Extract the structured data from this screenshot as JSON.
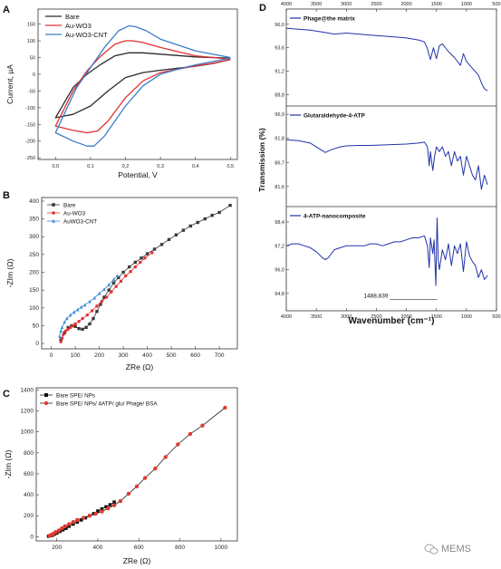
{
  "chart_data": [
    {
      "panel": "A",
      "type": "line",
      "xlabel": "Potential, V",
      "ylabel": "Current, µA",
      "xlim": [
        -0.05,
        0.52
      ],
      "ylim": [
        -255,
        195
      ],
      "xticks": [
        "0,0",
        "0,1",
        "0,2",
        "0,3",
        "0,4",
        "0,5"
      ],
      "yticks": [
        "-250",
        "-200",
        "-150",
        "-100",
        "-50",
        "0",
        "50",
        "100",
        "150"
      ],
      "legend_position": "top-left",
      "series": [
        {
          "name": "Bare",
          "color": "#2b2b2b",
          "x": [
            0.5,
            0.4,
            0.3,
            0.25,
            0.21,
            0.17,
            0.13,
            0.09,
            0.05,
            0.0,
            0.05,
            0.1,
            0.15,
            0.2,
            0.25,
            0.3,
            0.35,
            0.4,
            0.45,
            0.5
          ],
          "y": [
            48,
            52,
            60,
            64,
            64,
            55,
            30,
            0,
            -40,
            -130,
            -120,
            -95,
            -50,
            -10,
            5,
            12,
            18,
            24,
            32,
            44
          ]
        },
        {
          "name": "Au-WO3",
          "color": "#e03030",
          "x": [
            0.5,
            0.4,
            0.3,
            0.25,
            0.22,
            0.2,
            0.17,
            0.13,
            0.09,
            0.05,
            0.0,
            0.05,
            0.09,
            0.12,
            0.15,
            0.2,
            0.25,
            0.3,
            0.35,
            0.4,
            0.45,
            0.5
          ],
          "y": [
            45,
            55,
            80,
            95,
            100,
            100,
            90,
            55,
            10,
            -50,
            -155,
            -168,
            -175,
            -170,
            -140,
            -70,
            -20,
            5,
            15,
            25,
            33,
            44
          ]
        },
        {
          "name": "Au-WO3-CNT",
          "color": "#3a7dc8",
          "x": [
            0.5,
            0.4,
            0.3,
            0.26,
            0.23,
            0.21,
            0.18,
            0.14,
            0.1,
            0.06,
            0.0,
            0.05,
            0.09,
            0.11,
            0.14,
            0.2,
            0.25,
            0.3,
            0.35,
            0.4,
            0.45,
            0.5
          ],
          "y": [
            50,
            70,
            105,
            130,
            142,
            145,
            130,
            80,
            20,
            -40,
            -175,
            -200,
            -215,
            -215,
            -185,
            -95,
            -35,
            0,
            15,
            28,
            38,
            48
          ]
        }
      ]
    },
    {
      "panel": "B",
      "type": "scatter",
      "xlabel": "ZRe (Ω)",
      "ylabel": "-ZIm (Ω)",
      "xlim": [
        -40,
        775
      ],
      "ylim": [
        -15,
        410
      ],
      "xticks": [
        "0",
        "100",
        "200",
        "300",
        "400",
        "500",
        "600",
        "700"
      ],
      "yticks": [
        "0",
        "50",
        "100",
        "150",
        "200",
        "250",
        "300",
        "350",
        "400"
      ],
      "legend_position": "top-left",
      "series": [
        {
          "name": "Bare",
          "color": "#3a3a3a",
          "marker": "square",
          "x": [
            40,
            55,
            70,
            85,
            100,
            115,
            130,
            145,
            160,
            175,
            190,
            205,
            220,
            240,
            260,
            280,
            300,
            325,
            350,
            375,
            400,
            430,
            460,
            490,
            520,
            550,
            580,
            610,
            640,
            670,
            700,
            745
          ],
          "y": [
            10,
            30,
            45,
            50,
            48,
            42,
            40,
            45,
            55,
            70,
            90,
            110,
            130,
            150,
            170,
            185,
            200,
            215,
            228,
            240,
            252,
            265,
            278,
            292,
            305,
            318,
            330,
            340,
            350,
            360,
            368,
            388
          ]
        },
        {
          "name": "Au-WO3",
          "color": "#e03030",
          "marker": "circle",
          "x": [
            40,
            45,
            50,
            60,
            70,
            80,
            90,
            100,
            115,
            130,
            150,
            170,
            190,
            210,
            230,
            250,
            270,
            290,
            310,
            330,
            350,
            370,
            390,
            420
          ],
          "y": [
            5,
            15,
            25,
            35,
            40,
            45,
            50,
            55,
            62,
            70,
            80,
            92,
            105,
            118,
            130,
            145,
            160,
            175,
            190,
            202,
            215,
            228,
            240,
            255
          ]
        },
        {
          "name": "AuWO3-CNT",
          "color": "#3a8ad6",
          "marker": "triangle",
          "x": [
            35,
            40,
            45,
            55,
            65,
            80,
            95,
            110,
            125,
            140,
            160,
            180,
            200,
            220,
            240,
            260,
            275
          ],
          "y": [
            20,
            35,
            45,
            60,
            70,
            80,
            88,
            95,
            102,
            108,
            118,
            128,
            140,
            152,
            165,
            180,
            190
          ]
        }
      ]
    },
    {
      "panel": "C",
      "type": "scatter",
      "xlabel": "ZRe (Ω)",
      "ylabel": "-ZIm (Ω)",
      "xlim": [
        100,
        1080
      ],
      "ylim": [
        -40,
        1420
      ],
      "xticks": [
        "200",
        "400",
        "600",
        "800",
        "1000"
      ],
      "yticks": [
        "0",
        "200",
        "400",
        "600",
        "800",
        "1000",
        "1200",
        "1400"
      ],
      "legend_position": "top-left",
      "series": [
        {
          "name": "Bare SPE/ NPs",
          "color": "#111111",
          "marker": "square",
          "x": [
            160,
            170,
            180,
            190,
            200,
            215,
            230,
            245,
            260,
            280,
            300,
            320,
            340,
            360,
            380,
            400,
            420,
            440,
            460,
            480
          ],
          "y": [
            5,
            10,
            15,
            25,
            35,
            50,
            65,
            80,
            100,
            120,
            140,
            160,
            180,
            200,
            220,
            245,
            265,
            285,
            305,
            330
          ]
        },
        {
          "name": "Bare SPE/ NPs/ 4ATP/ glu/ Phage/ BSA",
          "color": "#e03a30",
          "marker": "circle",
          "x": [
            165,
            175,
            185,
            195,
            210,
            225,
            240,
            260,
            280,
            300,
            330,
            360,
            390,
            420,
            450,
            480,
            510,
            550,
            590,
            630,
            680,
            730,
            790,
            850,
            910,
            1020
          ],
          "y": [
            10,
            20,
            30,
            45,
            60,
            80,
            100,
            120,
            140,
            160,
            180,
            200,
            220,
            240,
            270,
            300,
            340,
            410,
            480,
            560,
            650,
            760,
            880,
            980,
            1060,
            1230
          ]
        }
      ]
    },
    {
      "panel": "D",
      "type": "line",
      "xlabel": "Wavenumber (cm⁻¹)",
      "ylabel": "Transmission (%)",
      "xlim": [
        4000,
        500
      ],
      "xticks": [
        "4000",
        "3500",
        "3000",
        "2500",
        "2000",
        "1500",
        "1000",
        "500"
      ],
      "series": [
        {
          "name": "Phage@the matrix",
          "color": "#2233a8",
          "yticks": [
            "96,0",
            "93,6",
            "91,2",
            "88,8"
          ],
          "ylim": [
            88.2,
            97.0
          ],
          "x": [
            4000,
            3800,
            3600,
            3400,
            3200,
            3000,
            2800,
            2600,
            2400,
            2200,
            2000,
            1800,
            1700,
            1650,
            1600,
            1550,
            1500,
            1450,
            1400,
            1300,
            1200,
            1100,
            1050,
            1000,
            900,
            800,
            750,
            700,
            650
          ],
          "y": [
            95.6,
            95.5,
            95.4,
            95.2,
            95.0,
            95.1,
            95.0,
            94.9,
            94.8,
            94.7,
            94.6,
            94.4,
            94.2,
            93.5,
            92.4,
            93.6,
            92.5,
            93.8,
            94.0,
            93.2,
            92.6,
            91.8,
            93.0,
            92.2,
            91.5,
            90.8,
            90.0,
            89.4,
            89.2
          ]
        },
        {
          "name": "Glutaraldehyde-4-ATP",
          "color": "#2233a8",
          "yticks": [
            "96,9",
            "91,8",
            "86,7",
            "81,6"
          ],
          "ylim": [
            78.5,
            97.5
          ],
          "x": [
            4000,
            3800,
            3600,
            3450,
            3350,
            3250,
            3100,
            3000,
            2800,
            2600,
            2400,
            2200,
            2000,
            1800,
            1700,
            1650,
            1620,
            1600,
            1560,
            1530,
            1500,
            1450,
            1400,
            1350,
            1300,
            1250,
            1200,
            1150,
            1100,
            1050,
            1000,
            950,
            900,
            850,
            800,
            750,
            700,
            650
          ],
          "y": [
            91.5,
            91.3,
            90.8,
            89.6,
            88.8,
            89.4,
            90.0,
            90.2,
            90.3,
            90.3,
            90.4,
            90.5,
            90.6,
            90.8,
            91.0,
            90.0,
            86.0,
            89.0,
            85.0,
            88.0,
            90.0,
            89.0,
            90.0,
            88.0,
            89.0,
            86.0,
            89.0,
            87.0,
            88.0,
            84.0,
            88.0,
            86.0,
            84.0,
            83.0,
            86.0,
            81.0,
            84.0,
            82.0
          ]
        },
        {
          "name": "4-ATP-nanocomposite",
          "color": "#2233a8",
          "yticks": [
            "98,4",
            "97,2",
            "96,0",
            "94,8"
          ],
          "ylim": [
            94.2,
            98.9
          ],
          "x": [
            4000,
            3900,
            3800,
            3700,
            3600,
            3500,
            3400,
            3350,
            3300,
            3250,
            3200,
            3100,
            3000,
            2900,
            2800,
            2700,
            2600,
            2500,
            2400,
            2300,
            2200,
            2100,
            2000,
            1900,
            1800,
            1700,
            1650,
            1620,
            1600,
            1560,
            1540,
            1510,
            1500,
            1488,
            1470,
            1450,
            1400,
            1350,
            1300,
            1250,
            1200,
            1150,
            1100,
            1050,
            1000,
            950,
            900,
            850,
            800,
            750,
            700,
            650
          ],
          "y": [
            97.2,
            97.3,
            97.3,
            97.2,
            97.1,
            96.9,
            96.6,
            96.5,
            96.6,
            96.8,
            97.0,
            97.1,
            97.2,
            97.2,
            97.2,
            97.2,
            97.3,
            97.3,
            97.2,
            97.3,
            97.4,
            97.4,
            97.5,
            97.6,
            97.6,
            97.7,
            97.2,
            96.1,
            97.6,
            96.8,
            97.5,
            95.2,
            97.0,
            98.6,
            96.5,
            96.0,
            97.0,
            96.5,
            97.3,
            96.2,
            97.2,
            96.8,
            97.3,
            95.9,
            97.4,
            96.7,
            96.4,
            96.2,
            95.6,
            96.0,
            95.5,
            95.7
          ]
        }
      ],
      "annotation": {
        "text": "1488,839",
        "x": 1488,
        "y": 94.5
      }
    }
  ],
  "panels": {
    "a": {
      "letter": "A"
    },
    "b": {
      "letter": "B"
    },
    "c": {
      "letter": "C"
    },
    "d": {
      "letter": "D"
    }
  },
  "watermark": {
    "icon": "wechat-icon",
    "text": "MEMS"
  }
}
